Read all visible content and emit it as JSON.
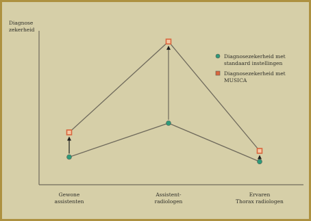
{
  "chart_data": {
    "type": "line",
    "title": "",
    "ylabel_lines": [
      "Diagnose",
      "zekerheid"
    ],
    "xlabel": "",
    "categories": [
      [
        "Gewone",
        "assistenten"
      ],
      [
        "Assistent-",
        "radiologen"
      ],
      [
        "Ervaren",
        "Thorax radiologen"
      ]
    ],
    "ylim": [
      0,
      100
    ],
    "grid": false,
    "legend_position": "top-right",
    "series": [
      {
        "key": "standard",
        "name_lines": [
          "Diagnosezekerheid met",
          "standaard instellingen"
        ],
        "values": [
          18,
          40,
          15
        ],
        "marker": "round",
        "color": "#2e9a7a"
      },
      {
        "key": "musica",
        "name_lines": [
          "Diagnosezekerheid met",
          "MUSICA"
        ],
        "values": [
          34,
          93,
          22
        ],
        "marker": "square",
        "color": "#d9663e"
      }
    ],
    "arrows": "from standard to musica for each category"
  },
  "colors": {
    "background": "#d6cfa8",
    "border": "#ad9140",
    "axis": "#6f6a5c",
    "line": "#6f6a5c",
    "arrow": "#1c1c1c"
  }
}
